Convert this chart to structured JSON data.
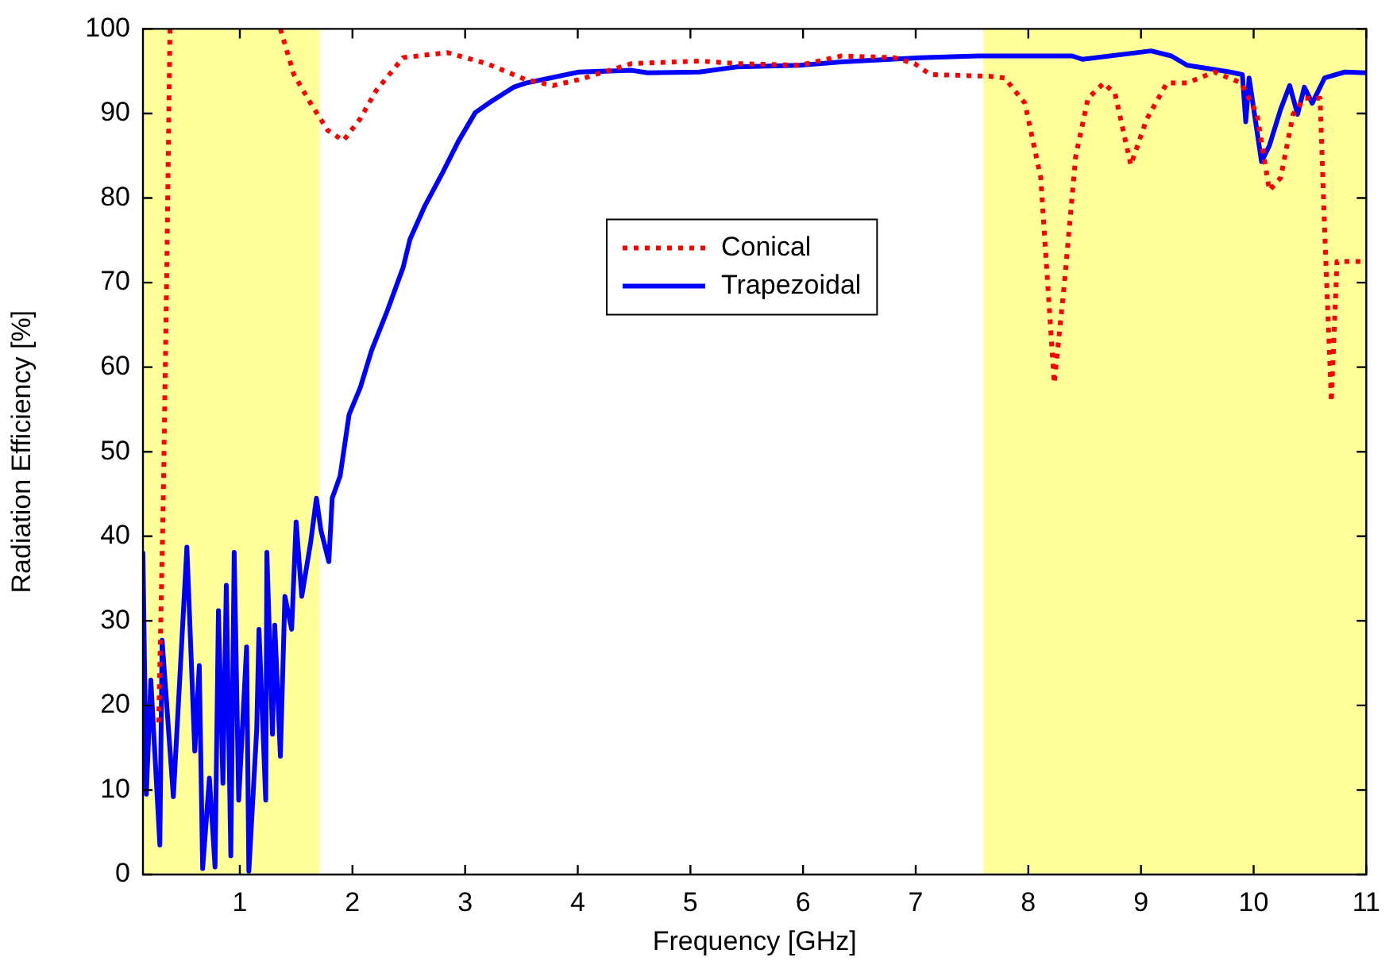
{
  "chart_data": {
    "type": "line",
    "xlabel": "Frequency [GHz]",
    "ylabel": "Radiation Efficiency [%]",
    "xlim": [
      0.14,
      11
    ],
    "xticks": [
      1,
      2,
      3,
      4,
      5,
      6,
      7,
      8,
      9,
      10,
      11
    ],
    "ylim": [
      0,
      100
    ],
    "yticks": [
      0,
      10,
      20,
      30,
      40,
      50,
      60,
      70,
      80,
      90,
      100
    ],
    "grid": false,
    "legend": "top",
    "marker": "none",
    "bands": [
      {
        "axis": "x",
        "from": 0.14,
        "to": 1.71,
        "color": "#ffff99"
      },
      {
        "axis": "x",
        "from": 7.6,
        "to": 11,
        "color": "#ffff99"
      }
    ],
    "series": [
      {
        "name": "Conical",
        "color": "#ff0000",
        "line_style": "dotted",
        "x": [
          0.28,
          0.32,
          0.35,
          0.38,
          0.87,
          1.36,
          1.48,
          1.62,
          1.78,
          1.92,
          2.07,
          2.21,
          2.45,
          2.84,
          3.19,
          3.43,
          3.54,
          3.78,
          4.01,
          4.48,
          5.08,
          5.41,
          5.97,
          6.34,
          6.81,
          6.99,
          7.13,
          7.65,
          7.79,
          7.97,
          8.11,
          8.14,
          8.23,
          8.32,
          8.42,
          8.53,
          8.67,
          8.77,
          8.91,
          9.05,
          9.23,
          9.41,
          9.65,
          9.89,
          10.03,
          10.14,
          10.24,
          10.35,
          10.45,
          10.59,
          10.63,
          10.69,
          10.74,
          11
        ],
        "values": [
          18,
          44,
          70,
          100,
          null,
          100,
          94.6,
          91.4,
          88,
          86.8,
          89.4,
          92.7,
          96.6,
          97.2,
          95.9,
          94.6,
          94,
          93.3,
          94,
          95.9,
          96.2,
          95.9,
          95.7,
          96.8,
          96.6,
          95.9,
          94.6,
          94.4,
          94.2,
          91.2,
          82.4,
          76.3,
          58.1,
          69.9,
          84.9,
          91.8,
          93.6,
          92.3,
          83.9,
          89.3,
          93.6,
          93.6,
          94.9,
          93.6,
          89.9,
          80.9,
          82.4,
          89.9,
          91.8,
          91.8,
          76.3,
          55.9,
          72.5,
          72.5
        ]
      },
      {
        "name": "Trapezoidal",
        "color": "#0000ff",
        "line_style": "solid",
        "x": [
          0.14,
          0.17,
          0.21,
          0.29,
          0.31,
          0.41,
          0.53,
          0.6,
          0.64,
          0.67,
          0.73,
          0.78,
          0.81,
          0.85,
          0.88,
          0.92,
          0.95,
          0.99,
          1.06,
          1.08,
          1.15,
          1.17,
          1.23,
          1.24,
          1.29,
          1.31,
          1.36,
          1.4,
          1.46,
          1.5,
          1.55,
          1.63,
          1.68,
          1.72,
          1.79,
          1.82,
          1.89,
          1.97,
          2.07,
          2.17,
          2.31,
          2.45,
          2.51,
          2.64,
          2.8,
          2.94,
          3.09,
          3.23,
          3.43,
          3.54,
          4.01,
          4.48,
          4.62,
          5.08,
          5.41,
          5.97,
          6.34,
          7.04,
          7.55,
          8.39,
          8.48,
          9.09,
          9.27,
          9.41,
          9.79,
          9.9,
          9.93,
          9.96,
          10.07,
          10.14,
          10.24,
          10.32,
          10.39,
          10.45,
          10.52,
          10.63,
          10.81,
          11
        ],
        "values": [
          38,
          9.5,
          23,
          3.5,
          27.7,
          9.2,
          38.7,
          14.6,
          24.7,
          0.7,
          11.4,
          0.9,
          31.2,
          10.8,
          34.2,
          2.2,
          38.1,
          8.8,
          26.9,
          0.4,
          17.2,
          29,
          8.8,
          38.1,
          16.6,
          29.5,
          14,
          32.9,
          29,
          41.7,
          32.9,
          39.4,
          44.5,
          40.7,
          37,
          44.5,
          47.1,
          54.4,
          57.6,
          62,
          66.7,
          71.8,
          75.1,
          79,
          83,
          86.7,
          90.1,
          91.4,
          93.1,
          93.6,
          94.9,
          95.1,
          94.8,
          94.9,
          95.5,
          95.7,
          96.1,
          96.6,
          96.8,
          96.8,
          96.4,
          97.4,
          96.8,
          95.7,
          94.9,
          94.6,
          89,
          94.2,
          84.3,
          86.2,
          90.5,
          93.3,
          89.9,
          93.1,
          91.2,
          94.2,
          94.9,
          94.8
        ]
      }
    ]
  }
}
